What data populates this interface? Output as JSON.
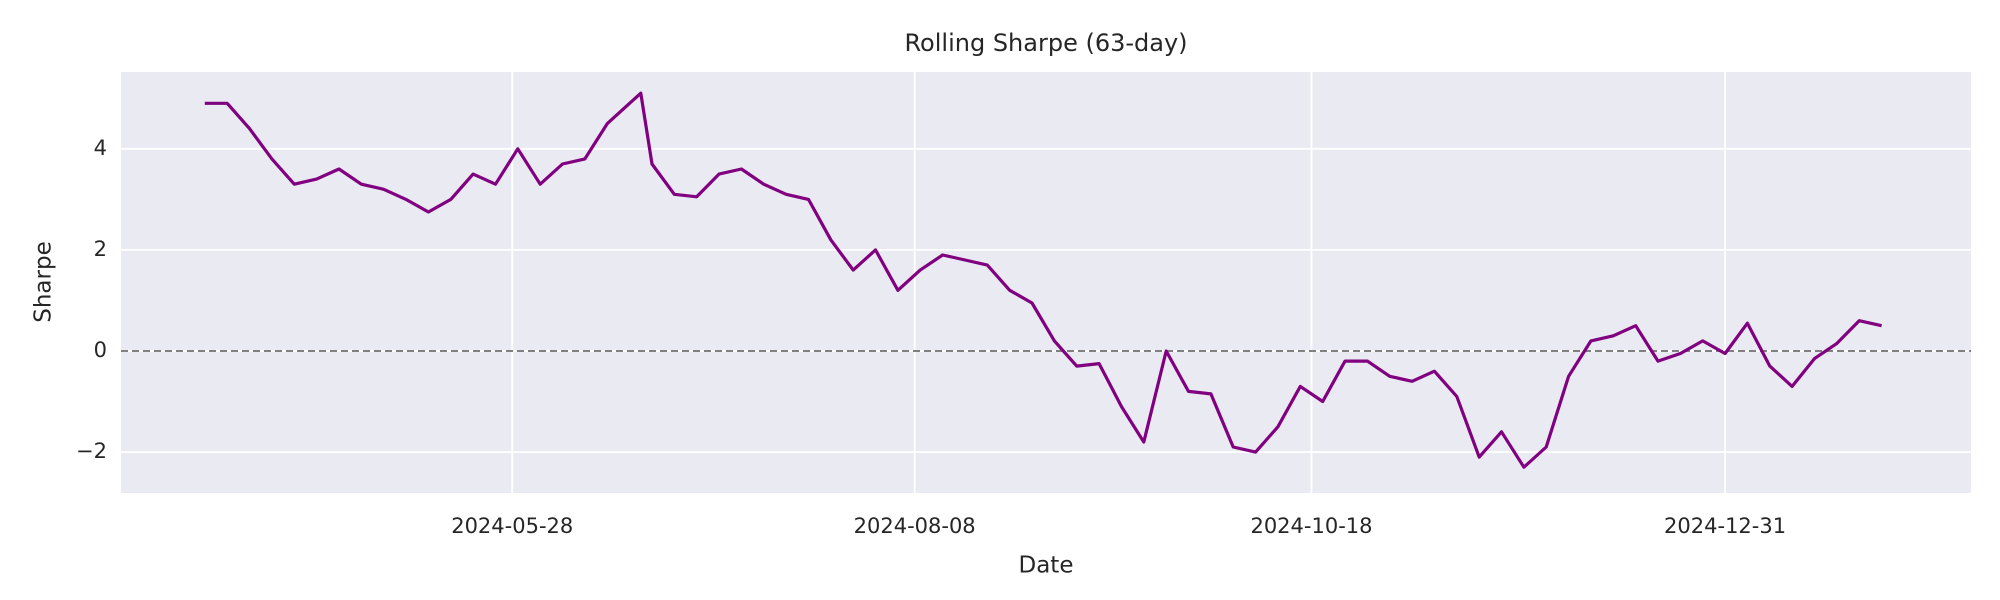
{
  "chart_data": {
    "type": "line",
    "title": "Rolling Sharpe (63-day)",
    "x_label": "Date",
    "y_label": "Sharpe",
    "x": [
      "2024-04-03",
      "2024-04-07",
      "2024-04-11",
      "2024-04-15",
      "2024-04-19",
      "2024-04-23",
      "2024-04-27",
      "2024-05-01",
      "2024-05-05",
      "2024-05-09",
      "2024-05-13",
      "2024-05-17",
      "2024-05-21",
      "2024-05-25",
      "2024-05-29",
      "2024-06-02",
      "2024-06-06",
      "2024-06-10",
      "2024-06-14",
      "2024-06-18",
      "2024-06-20",
      "2024-06-22",
      "2024-06-26",
      "2024-06-30",
      "2024-07-04",
      "2024-07-08",
      "2024-07-12",
      "2024-07-16",
      "2024-07-20",
      "2024-07-24",
      "2024-07-28",
      "2024-08-01",
      "2024-08-05",
      "2024-08-09",
      "2024-08-13",
      "2024-08-17",
      "2024-08-21",
      "2024-08-25",
      "2024-08-29",
      "2024-09-02",
      "2024-09-06",
      "2024-09-10",
      "2024-09-14",
      "2024-09-18",
      "2024-09-22",
      "2024-09-26",
      "2024-09-30",
      "2024-10-04",
      "2024-10-08",
      "2024-10-12",
      "2024-10-16",
      "2024-10-20",
      "2024-10-24",
      "2024-10-28",
      "2024-11-01",
      "2024-11-05",
      "2024-11-09",
      "2024-11-13",
      "2024-11-17",
      "2024-11-21",
      "2024-11-25",
      "2024-11-29",
      "2024-12-03",
      "2024-12-07",
      "2024-12-11",
      "2024-12-15",
      "2024-12-19",
      "2024-12-23",
      "2024-12-27",
      "2024-12-31",
      "2025-01-04",
      "2025-01-08",
      "2025-01-12",
      "2025-01-16",
      "2025-01-20",
      "2025-01-24",
      "2025-01-28"
    ],
    "series": [
      {
        "color": "#800080",
        "values": [
          4.9,
          4.9,
          4.4,
          3.8,
          3.3,
          3.4,
          3.6,
          3.3,
          3.2,
          3.0,
          2.75,
          3.0,
          3.5,
          3.3,
          4.0,
          3.3,
          3.7,
          3.8,
          4.5,
          4.9,
          5.1,
          3.7,
          3.1,
          3.05,
          3.5,
          3.6,
          3.3,
          3.1,
          3.0,
          2.2,
          1.6,
          2.0,
          1.2,
          1.6,
          1.9,
          1.8,
          1.7,
          1.2,
          0.95,
          0.2,
          -0.3,
          -0.25,
          -1.1,
          -1.8,
          0.0,
          -0.8,
          -0.85,
          -1.9,
          -2.0,
          -1.5,
          -0.7,
          -1.0,
          -0.2,
          -0.2,
          -0.5,
          -0.6,
          -0.4,
          -0.9,
          -2.1,
          -1.6,
          -2.3,
          -1.9,
          -0.5,
          0.2,
          0.3,
          0.5,
          -0.2,
          -0.05,
          0.2,
          -0.05,
          0.55,
          -0.3,
          -0.7,
          -0.15,
          0.15,
          0.6,
          0.5
        ]
      }
    ],
    "xlim": [
      "2024-03-19",
      "2025-02-13"
    ],
    "xticks": [
      "2024-05-28",
      "2024-08-08",
      "2024-10-18",
      "2024-12-31"
    ],
    "ylim": [
      -2.81,
      5.52
    ],
    "yticks": [
      -2,
      0,
      2,
      4
    ],
    "yticklabels": [
      "−2",
      "0",
      "2",
      "4"
    ],
    "reference_line": {
      "y": 0,
      "color": "#808080",
      "style": "dashed"
    },
    "grid": true
  }
}
